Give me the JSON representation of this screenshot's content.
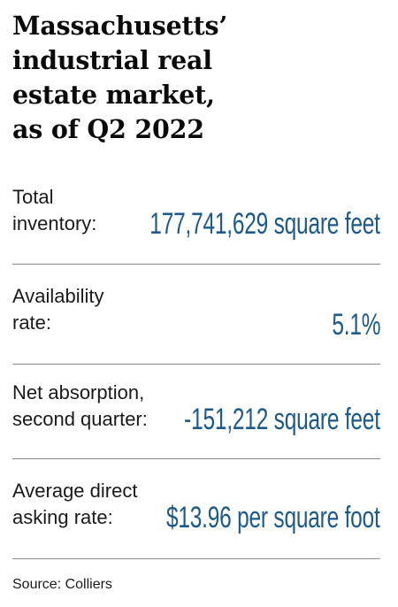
{
  "title": {
    "lines": [
      "Massachusetts’",
      "industrial real",
      "estate market,",
      "as of Q2 2022"
    ]
  },
  "rows": [
    {
      "label_lines": [
        "Total",
        "inventory:"
      ],
      "value": "177,741,629 square feet"
    },
    {
      "label_lines": [
        "Availability",
        "rate:"
      ],
      "value": "5.1%"
    },
    {
      "label_lines": [
        "Net absorption,",
        "second quarter:"
      ],
      "value": "-151,212 square feet"
    },
    {
      "label_lines": [
        "Average direct",
        "asking rate:"
      ],
      "value": "$13.96 per square foot"
    }
  ],
  "source": "Source: Colliers",
  "colors": {
    "value_blue": "#1d5a8c",
    "title_black": "#0b0b0b",
    "rule_gray": "#8a8a8a"
  }
}
